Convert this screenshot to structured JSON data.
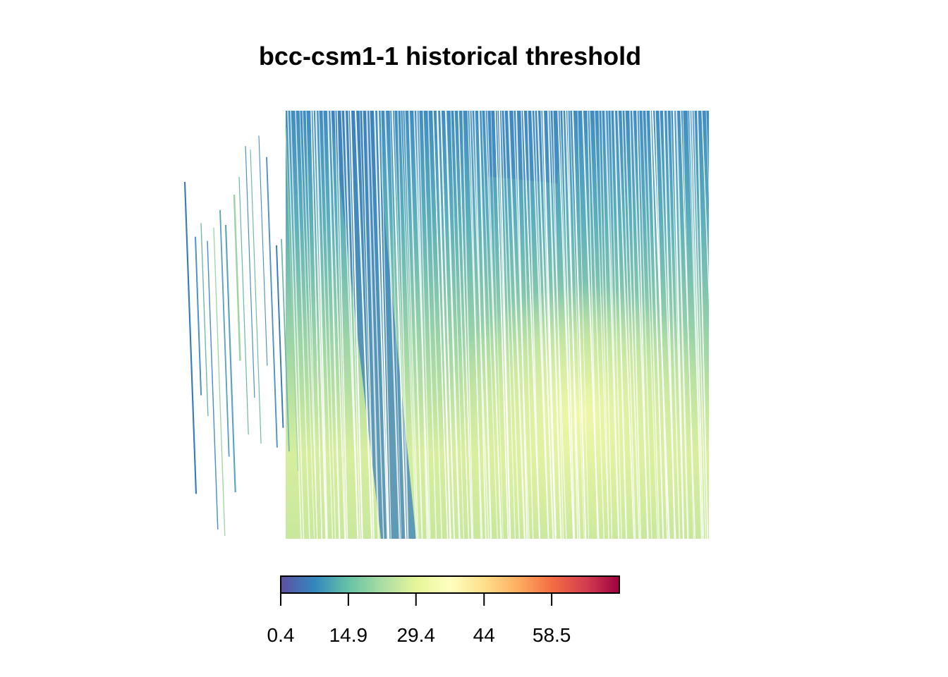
{
  "chart_data": {
    "type": "heatmap",
    "title": "bcc-csm1-1 historical threshold",
    "colorbar": {
      "min": 0.4,
      "max": 73,
      "ticks": [
        0.4,
        14.9,
        29.4,
        44,
        58.5
      ],
      "tick_labels": [
        "0.4",
        "14.9",
        "29.4",
        "44",
        "58.5"
      ],
      "colors": [
        "#5E4FA2",
        "#3288BD",
        "#66C2A5",
        "#ABDDA4",
        "#E6F598",
        "#FFFFBF",
        "#FEE08B",
        "#FDAE61",
        "#F46D43",
        "#D53E4F",
        "#9E0142"
      ]
    },
    "legend_placement": "bottom",
    "grid": false
  }
}
